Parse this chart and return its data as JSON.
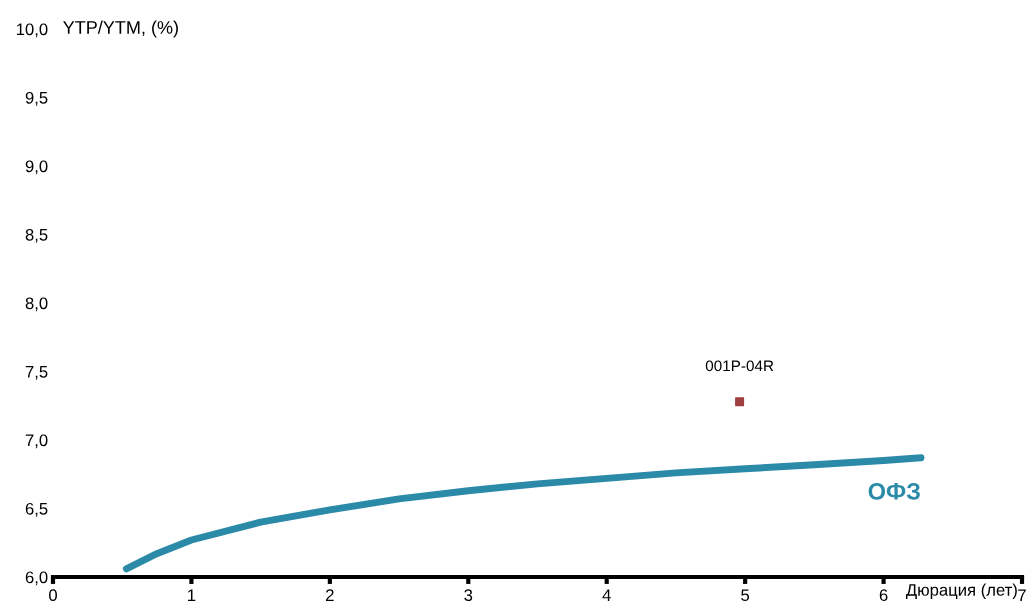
{
  "chart_data": {
    "type": "line",
    "xlabel": "Дюрация (лет)",
    "ylabel": "YTP/YTM, (%)",
    "series": [
      {
        "name": "ОФЗ",
        "color": "#2a8aa8",
        "x": [
          0.53,
          0.75,
          1.0,
          1.5,
          2.0,
          2.5,
          3.0,
          3.5,
          4.0,
          4.5,
          5.0,
          5.5,
          6.0,
          6.27
        ],
        "values": [
          6.06,
          6.17,
          6.27,
          6.4,
          6.49,
          6.57,
          6.63,
          6.68,
          6.72,
          6.76,
          6.79,
          6.82,
          6.85,
          6.87
        ]
      },
      {
        "name": "001P-04R",
        "type": "scatter",
        "color": "#a04040",
        "x": [
          4.96
        ],
        "values": [
          7.28
        ]
      }
    ],
    "xlim": [
      0,
      7
    ],
    "xticks": [
      0,
      1,
      2,
      3,
      4,
      5,
      6,
      7
    ],
    "ylim": [
      6.0,
      10.0
    ],
    "yticks": [
      {
        "value": 6.0,
        "label": "6,0"
      },
      {
        "value": 6.5,
        "label": "6,5"
      },
      {
        "value": 7.0,
        "label": "7,0"
      },
      {
        "value": 7.5,
        "label": "7,5"
      },
      {
        "value": 8.0,
        "label": "8,0"
      },
      {
        "value": 8.5,
        "label": "8,5"
      },
      {
        "value": 9.0,
        "label": "9,0"
      },
      {
        "value": 9.5,
        "label": "9,5"
      },
      {
        "value": 10.0,
        "label": "10,0"
      }
    ],
    "grid": false,
    "legend": false
  }
}
